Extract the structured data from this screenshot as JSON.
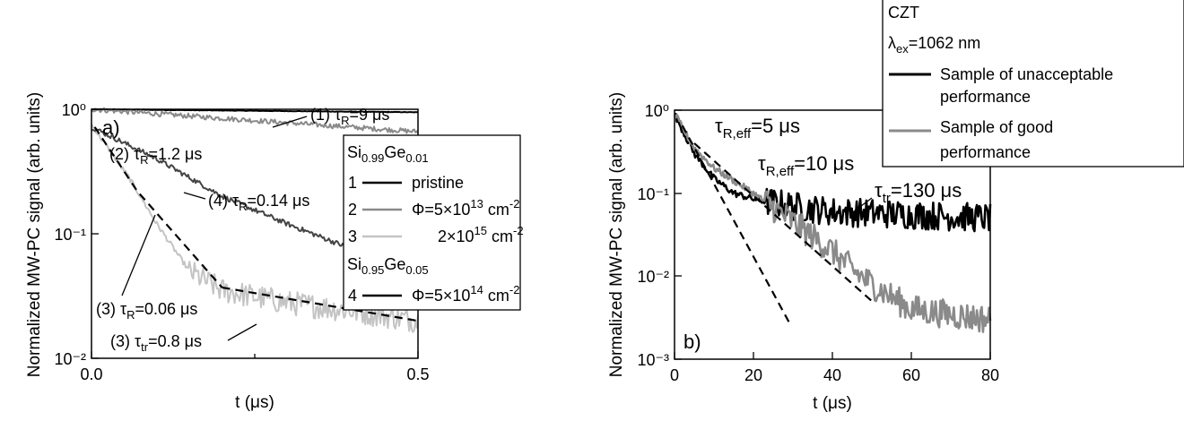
{
  "chart_data": [
    {
      "panel": "a)",
      "type": "line",
      "xlabel": "t (μs)",
      "ylabel": "Normalized MW-PC signal (arb. units)",
      "xlim": [
        0,
        0.5
      ],
      "ylim": [
        0.01,
        1
      ],
      "yscale": "log",
      "x_ticks": [
        "0.0",
        "0.5"
      ],
      "y_ticks": [
        "10⁻²",
        "10⁻¹",
        "10⁰"
      ],
      "series": [
        {
          "name": "1 pristine",
          "color": "#000000",
          "tau_us": 9,
          "x": [
            0,
            0.5
          ],
          "y": [
            1.0,
            0.946
          ]
        },
        {
          "name": "2 Φ=5×10¹³ cm⁻²",
          "color": "#8a8a8a",
          "tau_us": 1.2,
          "x": [
            0,
            0.5
          ],
          "y": [
            1.0,
            0.66
          ]
        },
        {
          "name": "3 2×10¹⁵ cm⁻²",
          "color": "#c4c4c4",
          "tau_R_us": 0.06,
          "tau_tr_us": 0.8,
          "x": [
            0,
            0.06,
            0.1,
            0.15,
            0.2,
            0.3,
            0.4,
            0.5
          ],
          "y": [
            0.75,
            0.27,
            0.12,
            0.05,
            0.035,
            0.028,
            0.024,
            0.02
          ]
        },
        {
          "name": "4 Φ=5×10¹⁴ cm⁻²",
          "color": "#444444",
          "tau_us": 0.14,
          "x": [
            0,
            0.1,
            0.2,
            0.3,
            0.4,
            0.5
          ],
          "y": [
            0.72,
            0.4,
            0.2,
            0.12,
            0.075,
            0.05
          ]
        }
      ],
      "fits": [
        {
          "x": [
            0.005,
            0.07,
            0.2
          ],
          "y": [
            0.72,
            0.22,
            0.037
          ]
        },
        {
          "x": [
            0.2,
            0.5
          ],
          "y": [
            0.037,
            0.02
          ]
        }
      ],
      "annotations": {
        "panel_label": "a)",
        "a1_prefix": "(1) τ",
        "a1_sub": "R",
        "a1_val": "=9 μs",
        "a2_prefix": "(2) τ",
        "a2_sub": "R",
        "a2_val": "=1.2 μs",
        "a4_prefix": "(4) τ",
        "a4_sub": "R",
        "a4_val": "=0.14 μs",
        "a3r_prefix": "(3) τ",
        "a3r_sub": "R",
        "a3r_val": "=0.06 μs",
        "a3t_prefix": "(3) τ",
        "a3t_sub": "tr",
        "a3t_val": "=0.8 μs"
      },
      "legend": {
        "position": "right",
        "h1_base": "Si",
        "h1_sub1": "0.99",
        "h1_mid": "Ge",
        "h1_sub2": "0.01",
        "r1_num": "1",
        "r1_label": "pristine",
        "r2_num": "2",
        "r2_phi": "Φ=5×10",
        "r2_exp": "13",
        "r2_unit": " cm",
        "r2_uexp": "-2",
        "r3_num": "3",
        "r3_val": "2×10",
        "r3_exp": "15",
        "r3_unit": " cm",
        "r3_uexp": "-2",
        "h2_base": "Si",
        "h2_sub1": "0.95",
        "h2_mid": "Ge",
        "h2_sub2": "0.05",
        "r4_num": "4",
        "r4_phi": "Φ=5×10",
        "r4_exp": "14",
        "r4_unit": " cm",
        "r4_uexp": "-2"
      }
    },
    {
      "panel": "b)",
      "type": "line",
      "xlabel": "t (μs)",
      "ylabel": "Normalized MW-PC signal (arb. units)",
      "xlim": [
        0,
        80
      ],
      "ylim": [
        0.001,
        1
      ],
      "yscale": "log",
      "x_ticks": [
        "0",
        "20",
        "40",
        "60",
        "80"
      ],
      "y_ticks": [
        "10⁻³",
        "10⁻²",
        "10⁻¹",
        "10⁰"
      ],
      "series": [
        {
          "name": "Sample of unacceptable performance",
          "color": "#000000",
          "x": [
            0,
            5,
            10,
            15,
            20,
            30,
            40,
            60,
            80
          ],
          "y": [
            0.9,
            0.3,
            0.15,
            0.1,
            0.085,
            0.07,
            0.06,
            0.055,
            0.05
          ]
        },
        {
          "name": "Sample of good performance",
          "color": "#8a8a8a",
          "x": [
            0,
            5,
            10,
            20,
            30,
            40,
            45,
            50,
            60,
            80
          ],
          "y": [
            0.9,
            0.35,
            0.2,
            0.1,
            0.045,
            0.02,
            0.012,
            0.008,
            0.004,
            0.003
          ]
        }
      ],
      "fits": [
        {
          "x": [
            2,
            29
          ],
          "y": [
            0.65,
            0.0028
          ]
        },
        {
          "x": [
            5,
            50
          ],
          "y": [
            0.4,
            0.005
          ]
        }
      ],
      "annotations": {
        "panel_label": "b)",
        "f1_prefix": "τ",
        "f1_sub": "R,eff",
        "f1_val": "=5 μs",
        "f2_prefix": "τ",
        "f2_sub": "R,eff",
        "f2_val": "=10 μs",
        "tr_prefix": "τ",
        "tr_sub": "tr",
        "tr_val": "=130 μs"
      },
      "legend": {
        "position": "top-right",
        "title": "CZT",
        "lambda_prefix": "λ",
        "lambda_sub": "ex",
        "lambda_val": "=1062 nm",
        "e1_l1": "Sample of unacceptable",
        "e1_l2": "performance",
        "e2_l1": "Sample of good",
        "e2_l2": "performance"
      }
    }
  ]
}
